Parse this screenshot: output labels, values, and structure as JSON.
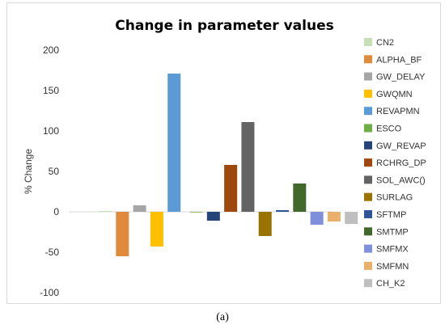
{
  "chart_data": {
    "type": "bar",
    "title": "Change in parameter values",
    "ylabel": "% Change",
    "xlabel": "",
    "ylim": [
      -100,
      200
    ],
    "yticks": [
      200,
      150,
      100,
      50,
      0,
      -50,
      -100
    ],
    "grid": false,
    "legend_position": "right",
    "series": [
      {
        "name": "CN2",
        "value": 1,
        "color": "#c5e0b4"
      },
      {
        "name": "ALPHA_BF",
        "value": -55,
        "color": "#e08a3c"
      },
      {
        "name": "GW_DELAY",
        "value": 8,
        "color": "#a6a6a6"
      },
      {
        "name": "GWQMN",
        "value": -43,
        "color": "#ffc000"
      },
      {
        "name": "REVAPMN",
        "value": 171,
        "color": "#5b9bd5"
      },
      {
        "name": "ESCO",
        "value": 0,
        "color": "#70ad47"
      },
      {
        "name": "GW_REVAP",
        "value": -11,
        "color": "#264478"
      },
      {
        "name": "RCHRG_DP",
        "value": 58,
        "color": "#9e480e"
      },
      {
        "name": "SOL_AWC()",
        "value": 111,
        "color": "#636363"
      },
      {
        "name": "SURLAG",
        "value": -30,
        "color": "#997300"
      },
      {
        "name": "SFTMP",
        "value": 2,
        "color": "#2e5597"
      },
      {
        "name": "SMTMP",
        "value": 35,
        "color": "#43682b"
      },
      {
        "name": "SMFMX",
        "value": -16,
        "color": "#7f8fdc"
      },
      {
        "name": "SMFMN",
        "value": -12,
        "color": "#e8b06a"
      },
      {
        "name": "CH_K2",
        "value": -15,
        "color": "#bfbfbf"
      }
    ]
  },
  "caption": "(a)"
}
